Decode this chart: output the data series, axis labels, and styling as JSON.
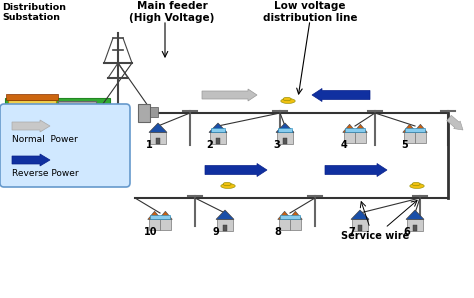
{
  "bg_color": "#ffffff",
  "top_label_main_feeder": "Main feeder\n(High Voltage)",
  "top_label_lv_line": "Low voltage\ndistribution line",
  "left_label_dist": "Distribution\nSubstation",
  "legend_normal": "Normal  Power",
  "legend_reverse": "Reverse Power",
  "service_wire_label": "Service wire",
  "house_numbers_top": [
    "1",
    "2",
    "3",
    "4",
    "5"
  ],
  "house_numbers_bot": [
    "10",
    "9",
    "8",
    "7",
    "6"
  ],
  "dark_blue_arrow": "#1030a0",
  "legend_box_color": "#d0e8ff",
  "house_blue_roof": "#1a4fa8",
  "house_gray_wall": "#cccccc",
  "house_orange_roof": "#cc6010",
  "solar_color": "#88ccee",
  "car_color": "#f0c010",
  "pole_color": "#666666",
  "substation_green": "#33aa33",
  "substation_yellow": "#f0d050",
  "wire_color": "#333333",
  "tower_color": "#444444"
}
